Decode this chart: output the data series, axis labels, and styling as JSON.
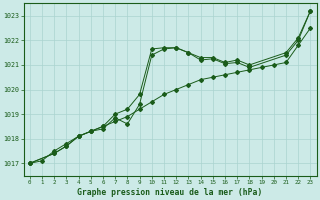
{
  "title": "Graphe pression niveau de la mer (hPa)",
  "background_color": "#cceae7",
  "grid_color": "#aad4d0",
  "line_color": "#1a5c1a",
  "ylim": [
    1016.5,
    1023.5
  ],
  "xlim": [
    -0.5,
    23.5
  ],
  "yticks": [
    1017,
    1018,
    1019,
    1020,
    1021,
    1022,
    1023
  ],
  "xticks": [
    0,
    1,
    2,
    3,
    4,
    5,
    6,
    7,
    8,
    9,
    10,
    11,
    12,
    13,
    14,
    15,
    16,
    17,
    18,
    19,
    20,
    21,
    22,
    23
  ],
  "s1_x": [
    0,
    1,
    2,
    3,
    4,
    5,
    6,
    7,
    8,
    9,
    10,
    11,
    12,
    13,
    14,
    15,
    16,
    17,
    18,
    19,
    20,
    21,
    22,
    23
  ],
  "s1_y": [
    1017.0,
    1017.1,
    1017.5,
    1017.8,
    1018.1,
    1018.3,
    1018.5,
    1018.7,
    1018.9,
    1019.2,
    1019.5,
    1019.8,
    1020.0,
    1020.2,
    1020.4,
    1020.5,
    1020.6,
    1020.7,
    1020.8,
    1020.9,
    1021.0,
    1021.1,
    1021.8,
    1022.5
  ],
  "s2_x": [
    0,
    2,
    3,
    4,
    5,
    6,
    7,
    8,
    9,
    10,
    11,
    12,
    13,
    14,
    15,
    16,
    17,
    18,
    21,
    22,
    23
  ],
  "s2_y": [
    1017.0,
    1017.4,
    1017.7,
    1018.1,
    1018.3,
    1018.5,
    1019.0,
    1019.2,
    1019.8,
    1021.65,
    1021.7,
    1021.7,
    1021.5,
    1021.3,
    1021.3,
    1021.1,
    1021.2,
    1021.0,
    1021.5,
    1022.1,
    1023.2
  ],
  "s3_x": [
    0,
    2,
    3,
    4,
    5,
    6,
    7,
    8,
    9,
    10,
    11,
    12,
    13,
    14,
    15,
    16,
    17,
    18,
    21,
    22,
    23
  ],
  "s3_y": [
    1017.0,
    1017.4,
    1017.7,
    1018.1,
    1018.3,
    1018.4,
    1018.85,
    1018.6,
    1019.4,
    1021.4,
    1021.65,
    1021.7,
    1021.5,
    1021.2,
    1021.25,
    1021.05,
    1021.1,
    1020.9,
    1021.4,
    1022.0,
    1023.2
  ]
}
